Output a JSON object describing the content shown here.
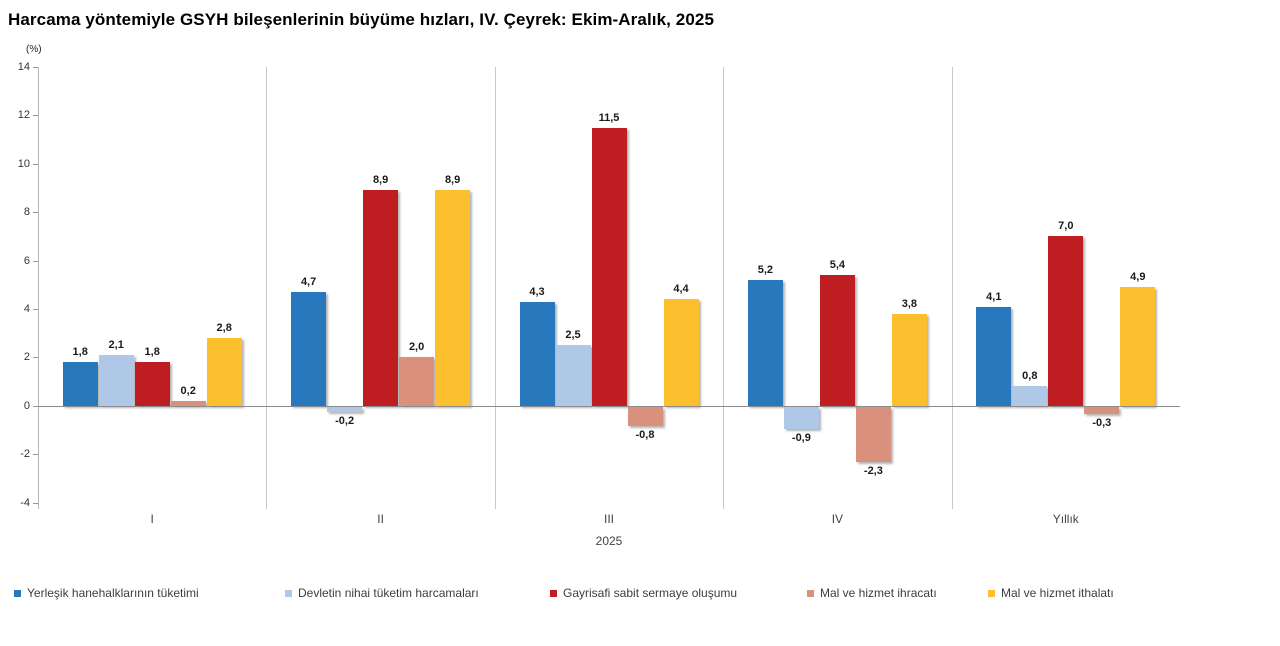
{
  "chart_data": {
    "type": "bar",
    "title": "Harcama yöntemiyle GSYH bileşenlerinin büyüme hızları, IV. Çeyrek: Ekim-Aralık, 2025",
    "unit_label": "(%)",
    "categories": [
      "I",
      "II",
      "III",
      "IV",
      "Yıllık"
    ],
    "x_axis_note": "2025",
    "xlabel": "",
    "ylabel": "(%)",
    "ylim": [
      -4,
      14
    ],
    "yticks": [
      14,
      12,
      10,
      8,
      6,
      4,
      2,
      0,
      -2,
      -4
    ],
    "grid": false,
    "legend_position": "bottom",
    "value_label_decimal_separator": ",",
    "series": [
      {
        "name": "Yerleşik hanehalklarının tüketimi",
        "color": "#2878BE",
        "values": [
          1.8,
          4.7,
          4.3,
          5.2,
          4.1
        ]
      },
      {
        "name": "Devletin nihai tüketim harcamaları",
        "color": "#AFC8E8",
        "values": [
          2.1,
          -0.2,
          2.5,
          -0.9,
          0.8
        ]
      },
      {
        "name": "Gayrisafi sabit sermaye oluşumu",
        "color": "#BE1E22",
        "values": [
          1.8,
          8.9,
          11.5,
          5.4,
          7.0
        ]
      },
      {
        "name": "Mal ve hizmet ihracatı",
        "color": "#D9907C",
        "values": [
          0.2,
          2.0,
          -0.8,
          -2.3,
          -0.3
        ]
      },
      {
        "name": "Mal ve hizmet ithalatı",
        "color": "#FCBF2D",
        "values": [
          2.8,
          8.9,
          4.4,
          3.8,
          4.9
        ]
      }
    ]
  }
}
